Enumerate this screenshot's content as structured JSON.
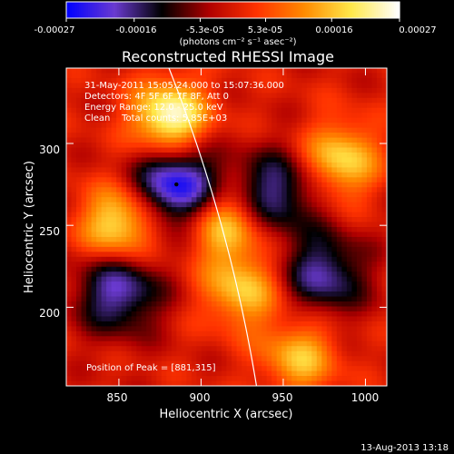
{
  "colorbar": {
    "tick_labels": [
      "-0.00027",
      "-0.00016",
      "-5.3e-05",
      "5.3e-05",
      "0.00016",
      "0.00027"
    ],
    "tick_values": [
      -0.00027,
      -0.00016,
      -5.3e-05,
      5.3e-05,
      0.00016,
      0.00027
    ],
    "range": [
      -0.00027,
      0.00027
    ],
    "units_label": "(photons cm⁻² s⁻¹ asec⁻²)",
    "color_stops": [
      "#0000ff",
      "#6a3ad0",
      "#000000",
      "#b00000",
      "#ff3300",
      "#ff8a00",
      "#ffe84a",
      "#ffffff"
    ]
  },
  "chart_data": {
    "type": "heatmap",
    "title": "Reconstructed RHESSI Image",
    "xlabel": "Heliocentric X (arcsec)",
    "ylabel": "Heliocentric Y (arcsec)",
    "xlim": [
      818,
      1013
    ],
    "ylim": [
      152,
      346
    ],
    "x_ticks": [
      850,
      900,
      950,
      1000
    ],
    "y_ticks": [
      200,
      250,
      300
    ],
    "colormap": "blue-purple-black-red-yellow-white",
    "value_range": [
      -0.00027,
      0.00027
    ],
    "limb_color": "#ffffff",
    "peak": {
      "x": 881,
      "y": 315
    },
    "annotations": {
      "time_range": "31-May-2011 15:05:24.000 to 15:07:36.000",
      "detectors": "Detectors: 4F 5F 6F 7F 8F, Att 0",
      "energy": "Energy Range: 12.0 - 25.0 keV",
      "method": "Clean    Total counts: 5.85E+03",
      "peak_label": "Position of Peak = [881,315]"
    },
    "notable_features": [
      {
        "kind": "minimum",
        "x": 885,
        "y": 275,
        "value": -0.00027
      },
      {
        "kind": "minimum",
        "x": 850,
        "y": 210,
        "value": -0.0002
      },
      {
        "kind": "minimum",
        "x": 945,
        "y": 270,
        "value": -0.00018
      },
      {
        "kind": "minimum",
        "x": 975,
        "y": 220,
        "value": -0.00018
      },
      {
        "kind": "maximum",
        "x": 881,
        "y": 315,
        "value": 0.00027
      },
      {
        "kind": "maximum",
        "x": 850,
        "y": 250,
        "value": 0.00022
      },
      {
        "kind": "maximum",
        "x": 915,
        "y": 250,
        "value": 0.00018
      },
      {
        "kind": "maximum",
        "x": 925,
        "y": 210,
        "value": 0.00017
      },
      {
        "kind": "maximum",
        "x": 985,
        "y": 290,
        "value": 0.00019
      },
      {
        "kind": "maximum",
        "x": 960,
        "y": 170,
        "value": 0.00016
      }
    ]
  },
  "timestamp": "13-Aug-2013 13:18"
}
